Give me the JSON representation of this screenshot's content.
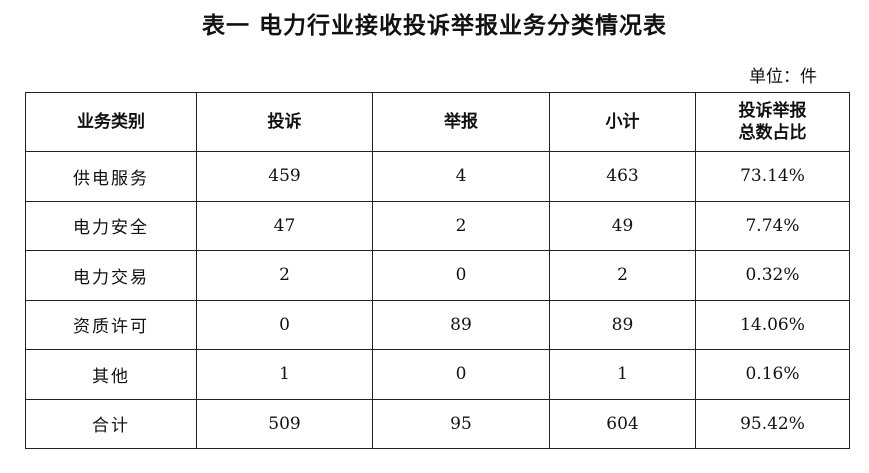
{
  "title": "表一  电力行业接收投诉举报业务分类情况表",
  "unit": "单位：件",
  "headers": [
    "业务类别",
    "投诉",
    "举报",
    "小计",
    "投诉举报",
    "总数占比"
  ],
  "rows": [
    [
      "供电服务",
      "459",
      "4",
      "463",
      "73.14%"
    ],
    [
      "电力安全",
      "47",
      "2",
      "49",
      "7.74%"
    ],
    [
      "电力交易",
      "2",
      "0",
      "2",
      "0.32%"
    ],
    [
      "资质许可",
      "0",
      "89",
      "89",
      "14.06%"
    ],
    [
      "其他",
      "1",
      "0",
      "1",
      "0.16%"
    ],
    [
      "合计",
      "509",
      "95",
      "604",
      "95.42%"
    ]
  ]
}
